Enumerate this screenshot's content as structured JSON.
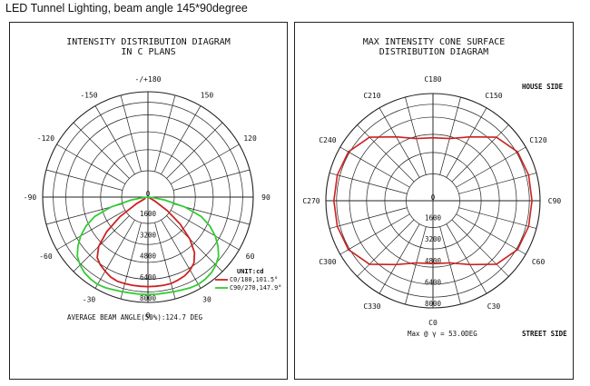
{
  "caption": "LED Tunnel Lighting, beam angle 145*90degree",
  "chart_data": [
    {
      "type": "polar",
      "title_line1": "INTENSITY DISTRIBUTION DIAGRAM",
      "title_line2": "IN C PLANS",
      "angle_labels": [
        {
          "deg": 0,
          "text": "0"
        },
        {
          "deg": 30,
          "text": "30"
        },
        {
          "deg": 60,
          "text": "60"
        },
        {
          "deg": 90,
          "text": "90"
        },
        {
          "deg": 120,
          "text": "120"
        },
        {
          "deg": 150,
          "text": "150"
        },
        {
          "deg": 180,
          "text": "-/+180"
        },
        {
          "deg": -150,
          "text": "-150"
        },
        {
          "deg": -120,
          "text": "-120"
        },
        {
          "deg": -90,
          "text": "-90"
        },
        {
          "deg": -60,
          "text": "-60"
        },
        {
          "deg": -30,
          "text": "-30"
        }
      ],
      "radial_labels": [
        "0",
        "1600",
        "3200",
        "4800",
        "6400",
        "8000"
      ],
      "rmax": 8000,
      "unit_label": "UNIT:cd",
      "series": [
        {
          "name": "C0/180,101.5°",
          "color": "#cc2222",
          "points": [
            [
              -65,
              200
            ],
            [
              -60,
              1000
            ],
            [
              -55,
              2600
            ],
            [
              -50,
              4100
            ],
            [
              -45,
              5300
            ],
            [
              -40,
              6000
            ],
            [
              -35,
              6300
            ],
            [
              -30,
              6500
            ],
            [
              -25,
              6700
            ],
            [
              -20,
              6800
            ],
            [
              -15,
              6800
            ],
            [
              -10,
              6800
            ],
            [
              -5,
              6800
            ],
            [
              0,
              6800
            ],
            [
              5,
              6800
            ],
            [
              10,
              6800
            ],
            [
              15,
              6800
            ],
            [
              20,
              6700
            ],
            [
              25,
              6600
            ],
            [
              30,
              6400
            ],
            [
              35,
              6100
            ],
            [
              40,
              5500
            ],
            [
              45,
              4500
            ],
            [
              50,
              3200
            ],
            [
              55,
              1800
            ],
            [
              60,
              600
            ],
            [
              65,
              100
            ]
          ]
        },
        {
          "name": "C90/270,147.9°",
          "color": "#33cc33",
          "points": [
            [
              -90,
              0
            ],
            [
              -85,
              300
            ],
            [
              -80,
              1300
            ],
            [
              -75,
              2900
            ],
            [
              -70,
              4300
            ],
            [
              -65,
              5200
            ],
            [
              -60,
              5900
            ],
            [
              -55,
              6500
            ],
            [
              -50,
              7000
            ],
            [
              -45,
              7300
            ],
            [
              -40,
              7500
            ],
            [
              -35,
              7600
            ],
            [
              -30,
              7650
            ],
            [
              -25,
              7600
            ],
            [
              -20,
              7500
            ],
            [
              -15,
              7450
            ],
            [
              -10,
              7400
            ],
            [
              -5,
              7400
            ],
            [
              0,
              7400
            ],
            [
              5,
              7400
            ],
            [
              10,
              7400
            ],
            [
              15,
              7450
            ],
            [
              20,
              7500
            ],
            [
              25,
              7600
            ],
            [
              30,
              7650
            ],
            [
              35,
              7600
            ],
            [
              40,
              7500
            ],
            [
              45,
              7300
            ],
            [
              50,
              7000
            ],
            [
              55,
              6500
            ],
            [
              60,
              5900
            ],
            [
              65,
              5200
            ],
            [
              70,
              4300
            ],
            [
              75,
              2900
            ],
            [
              80,
              1300
            ],
            [
              85,
              300
            ],
            [
              90,
              0
            ]
          ]
        }
      ],
      "footer": "AVERAGE BEAM ANGLE(50%):124.7 DEG"
    },
    {
      "type": "polar",
      "title_line1": "MAX INTENSITY CONE SURFACE",
      "title_line2": "DISTRIBUTION DIAGRAM",
      "angle_labels": [
        {
          "deg": 0,
          "text": "C0"
        },
        {
          "deg": 30,
          "text": "C30"
        },
        {
          "deg": 60,
          "text": "C60"
        },
        {
          "deg": 90,
          "text": "C90"
        },
        {
          "deg": 120,
          "text": "C120"
        },
        {
          "deg": 150,
          "text": "C150"
        },
        {
          "deg": 180,
          "text": "C180"
        },
        {
          "deg": 210,
          "text": "C210"
        },
        {
          "deg": 240,
          "text": "C240"
        },
        {
          "deg": 270,
          "text": "C270"
        },
        {
          "deg": 300,
          "text": "C300"
        },
        {
          "deg": 330,
          "text": "C330"
        }
      ],
      "radial_labels": [
        "0",
        "1600",
        "3200",
        "4800",
        "6400",
        "8000"
      ],
      "rmax": 8000,
      "house_side": "HOUSE SIDE",
      "street_side": "STREET SIDE",
      "max_label": "Max @ γ = 53.0DEG",
      "series": [
        {
          "name": "max-intensity-cone",
          "color": "#cc2222",
          "points": [
            [
              0,
              4700
            ],
            [
              15,
              4800
            ],
            [
              30,
              5500
            ],
            [
              45,
              6700
            ],
            [
              60,
              7300
            ],
            [
              75,
              7400
            ],
            [
              90,
              7400
            ],
            [
              105,
              7400
            ],
            [
              120,
              7300
            ],
            [
              135,
              6700
            ],
            [
              150,
              5500
            ],
            [
              165,
              4800
            ],
            [
              180,
              4700
            ],
            [
              195,
              4800
            ],
            [
              210,
              5500
            ],
            [
              225,
              6700
            ],
            [
              240,
              7300
            ],
            [
              255,
              7400
            ],
            [
              270,
              7400
            ],
            [
              285,
              7400
            ],
            [
              300,
              7300
            ],
            [
              315,
              6700
            ],
            [
              330,
              5500
            ],
            [
              345,
              4800
            ],
            [
              360,
              4700
            ]
          ]
        }
      ]
    }
  ]
}
